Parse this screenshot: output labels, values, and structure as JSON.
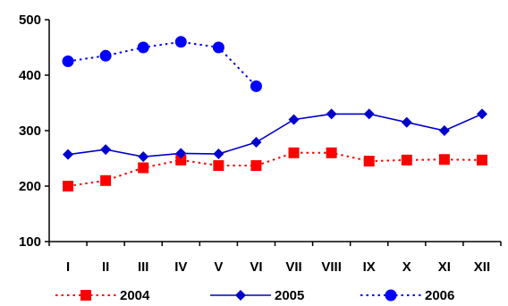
{
  "chart_data": {
    "type": "line",
    "title": "",
    "xlabel": "",
    "ylabel": "",
    "ylim": [
      100,
      500
    ],
    "yticks": [
      100,
      200,
      300,
      400,
      500
    ],
    "grid": false,
    "legend_position": "bottom",
    "categories": [
      "I",
      "II",
      "III",
      "IV",
      "V",
      "VI",
      "VII",
      "VIII",
      "IX",
      "X",
      "XI",
      "XII"
    ],
    "series": [
      {
        "name": "2004",
        "color": "#ff0000",
        "line_style": "dotted",
        "marker": "square",
        "values": [
          200,
          210,
          233,
          247,
          237,
          237,
          260,
          260,
          245,
          247,
          248,
          247
        ]
      },
      {
        "name": "2005",
        "color": "#0000cc",
        "line_style": "solid",
        "marker": "diamond",
        "values": [
          257,
          266,
          253,
          259,
          258,
          279,
          320,
          330,
          330,
          315,
          300,
          330
        ]
      },
      {
        "name": "2006",
        "color": "#0000ff",
        "line_style": "dotted",
        "marker": "circle",
        "values": [
          425,
          435,
          450,
          460,
          450,
          380,
          null,
          null,
          null,
          null,
          null,
          null
        ]
      }
    ]
  }
}
